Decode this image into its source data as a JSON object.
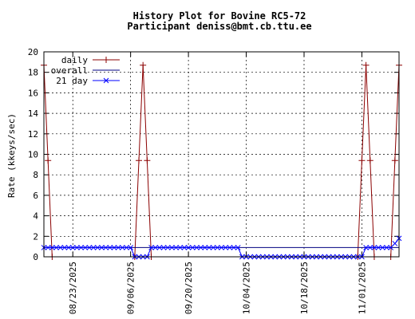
{
  "chart_data": {
    "type": "line",
    "title": "History Plot for Bovine RC5-72",
    "subtitle": "Participant deniss@bmt.cb.ttu.ee",
    "ylabel": "Rate (kkeys/sec)",
    "xlabel": "",
    "ylim": [
      0,
      20
    ],
    "xlim": [
      "2025-08-16",
      "2025-11-10"
    ],
    "grid": true,
    "legend_position": "top-left",
    "y_ticks": [
      "0",
      "2",
      "4",
      "6",
      "8",
      "10",
      "12",
      "14",
      "16",
      "18",
      "20"
    ],
    "x_ticks": [
      "08/23/2025",
      "09/06/2025",
      "09/20/2025",
      "10/04/2025",
      "10/18/2025",
      "11/01/2025"
    ],
    "series": [
      {
        "name": "daily",
        "color": "#8b0000",
        "marker": "plus",
        "points": [
          [
            "2025-08-16",
            18.7
          ],
          [
            "2025-08-17",
            9.4
          ],
          [
            "2025-08-18",
            0.0
          ],
          [
            "2025-09-07",
            0.0
          ],
          [
            "2025-09-08",
            9.4
          ],
          [
            "2025-09-09",
            18.7
          ],
          [
            "2025-09-10",
            9.4
          ],
          [
            "2025-09-11",
            0.0
          ],
          [
            "2025-10-31",
            0.0
          ],
          [
            "2025-11-01",
            9.4
          ],
          [
            "2025-11-02",
            18.7
          ],
          [
            "2025-11-03",
            9.4
          ],
          [
            "2025-11-04",
            0.0
          ],
          [
            "2025-11-08",
            0.0
          ],
          [
            "2025-11-09",
            9.4
          ],
          [
            "2025-11-10",
            18.7
          ]
        ]
      },
      {
        "name": "overall",
        "color": "#000080",
        "marker": "none",
        "points": [
          [
            "2025-08-16",
            0.9
          ],
          [
            "2025-11-10",
            0.9
          ]
        ]
      },
      {
        "name": "21 day",
        "color": "#0000ff",
        "marker": "x",
        "segments": [
          {
            "from": "2025-08-16",
            "to": "2025-09-06",
            "value": 0.9
          },
          {
            "from": "2025-09-07",
            "to": "2025-09-10",
            "value": 0.0
          },
          {
            "from": "2025-09-11",
            "to": "2025-10-02",
            "value": 0.9
          },
          {
            "from": "2025-10-03",
            "to": "2025-11-01",
            "value": 0.0
          },
          {
            "from": "2025-11-02",
            "to": "2025-11-08",
            "value": 0.9
          }
        ],
        "tail": [
          [
            "2025-11-09",
            1.3
          ],
          [
            "2025-11-10",
            1.8
          ]
        ]
      }
    ]
  }
}
